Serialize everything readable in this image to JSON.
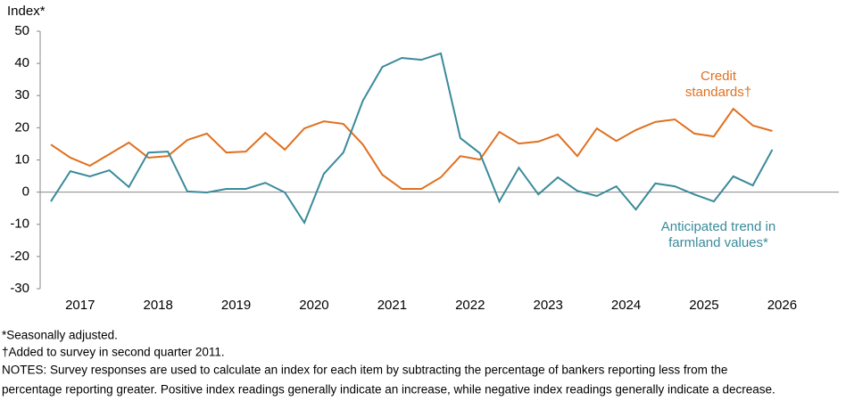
{
  "chart_data": {
    "type": "line",
    "y_label": "Index*",
    "categories": [
      "2017",
      null,
      null,
      null,
      "2018",
      null,
      null,
      null,
      "2019",
      null,
      null,
      null,
      "2020",
      null,
      null,
      null,
      "2021",
      null,
      null,
      null,
      "2022",
      null,
      null,
      null,
      "2023",
      null,
      null,
      null,
      "2024",
      null,
      null,
      null,
      "2025",
      null,
      null,
      null,
      "2026",
      null
    ],
    "series": [
      {
        "name": "Credit standards†",
        "color": "#e07020",
        "label_lines": [
          "Credit",
          "standards†"
        ],
        "values": [
          14.8,
          10.7,
          8.2,
          11.8,
          15.4,
          10.7,
          11.2,
          16.2,
          18.2,
          12.3,
          12.6,
          18.4,
          13.2,
          19.8,
          22.0,
          21.2,
          14.8,
          5.4,
          1.0,
          1.0,
          4.6,
          11.2,
          10.1,
          18.7,
          15.1,
          15.7,
          17.9,
          11.2,
          19.8,
          15.9,
          19.3,
          21.8,
          22.6,
          18.2,
          17.3,
          25.9,
          20.7,
          19.0
        ]
      },
      {
        "name": "Anticipated trend in farmland values*",
        "color": "#3a8a9a",
        "label_lines": [
          "Anticipated trend in",
          "farmland values*"
        ],
        "values": [
          -2.9,
          6.5,
          4.9,
          6.8,
          1.6,
          12.3,
          12.6,
          0.2,
          -0.1,
          1.0,
          1.0,
          2.9,
          -0.1,
          -9.5,
          5.7,
          12.3,
          28.4,
          38.9,
          41.7,
          41.1,
          43.1,
          16.8,
          12.1,
          -2.9,
          7.6,
          -0.7,
          4.6,
          0.4,
          -1.2,
          1.8,
          -5.4,
          2.7,
          1.8,
          -0.7,
          -2.9,
          4.9,
          2.1,
          13.2
        ]
      }
    ],
    "ylim": [
      -30,
      50
    ],
    "yticks": [
      -30,
      -20,
      -10,
      0,
      10,
      20,
      30,
      40,
      50
    ],
    "notes": [
      "*Seasonally adjusted.",
      "†Added to survey in second quarter 2011.",
      "NOTES: Survey responses are used to calculate an index for each item by subtracting the percentage of bankers reporting less from the",
      "percentage reporting greater. Positive index readings generally indicate an increase, while negative index readings generally indicate a decrease."
    ]
  }
}
